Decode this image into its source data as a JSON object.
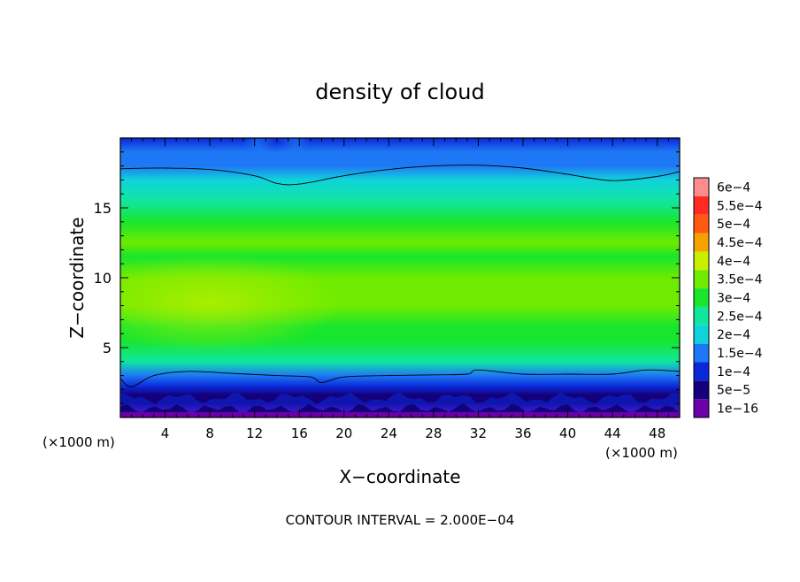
{
  "chart_data": {
    "type": "heatmap",
    "title": "density of cloud",
    "xlabel": "X−coordinate",
    "ylabel": "Z−coordinate",
    "x_unit_left": "(×1000 m)",
    "x_unit_right": "(×1000 m)",
    "footer": "CONTOUR INTERVAL = 2.000E−04",
    "xlim": [
      0,
      50
    ],
    "ylim": [
      0,
      20
    ],
    "xticks": [
      4,
      8,
      12,
      16,
      20,
      24,
      28,
      32,
      36,
      40,
      44,
      48
    ],
    "xtick_labels": [
      "4",
      "8",
      "12",
      "16",
      "20",
      "24",
      "28",
      "32",
      "36",
      "40",
      "44",
      "48"
    ],
    "yticks": [
      5,
      10,
      15
    ],
    "ytick_labels": [
      "5",
      "10",
      "15"
    ],
    "colorbar": {
      "levels": [
        {
          "label": "1e−16",
          "value": 1e-16,
          "color": "#6a00a8"
        },
        {
          "label": "5e−5",
          "value": 5e-05,
          "color": "#14007a"
        },
        {
          "label": "1e−4",
          "value": 0.0001,
          "color": "#0a28d8"
        },
        {
          "label": "1.5e−4",
          "value": 0.00015,
          "color": "#1e78f5"
        },
        {
          "label": "2e−4",
          "value": 0.0002,
          "color": "#10d2dc"
        },
        {
          "label": "2.5e−4",
          "value": 0.00025,
          "color": "#10e6a0"
        },
        {
          "label": "3e−4",
          "value": 0.0003,
          "color": "#18e62d"
        },
        {
          "label": "3.5e−4",
          "value": 0.00035,
          "color": "#6eeb00"
        },
        {
          "label": "4e−4",
          "value": 0.0004,
          "color": "#c8ee00"
        },
        {
          "label": "4.5e−4",
          "value": 0.00045,
          "color": "#f5a200"
        },
        {
          "label": "5e−4",
          "value": 0.0005,
          "color": "#ff5a10"
        },
        {
          "label": "5.5e−4",
          "value": 0.00055,
          "color": "#ff2a24"
        },
        {
          "label": "6e−4",
          "value": 0.0006,
          "color": "#ff8c8c"
        }
      ]
    },
    "contour_level": 0.0002,
    "contour_upper_z": [
      [
        0,
        17.8
      ],
      [
        4,
        17.85
      ],
      [
        8,
        17.75
      ],
      [
        12,
        17.3
      ],
      [
        14,
        16.75
      ],
      [
        16,
        16.7
      ],
      [
        20,
        17.3
      ],
      [
        24,
        17.75
      ],
      [
        28,
        18.0
      ],
      [
        32,
        18.05
      ],
      [
        36,
        17.85
      ],
      [
        40,
        17.4
      ],
      [
        44,
        16.95
      ],
      [
        48,
        17.25
      ],
      [
        50,
        17.6
      ]
    ],
    "contour_lower_z": [
      [
        0,
        2.8
      ],
      [
        1,
        2.2
      ],
      [
        3,
        3.0
      ],
      [
        6,
        3.3
      ],
      [
        10,
        3.15
      ],
      [
        14,
        3.0
      ],
      [
        17,
        2.9
      ],
      [
        18,
        2.5
      ],
      [
        20,
        2.9
      ],
      [
        24,
        3.0
      ],
      [
        28,
        3.05
      ],
      [
        31,
        3.1
      ],
      [
        32,
        3.4
      ],
      [
        36,
        3.1
      ],
      [
        40,
        3.1
      ],
      [
        44,
        3.1
      ],
      [
        47,
        3.4
      ],
      [
        50,
        3.3
      ]
    ],
    "z_profile": [
      {
        "z": 0.0,
        "value": 1e-16
      },
      {
        "z": 0.6,
        "value": 1e-16
      },
      {
        "z": 1.0,
        "value": 5e-05
      },
      {
        "z": 1.6,
        "value": 9e-05
      },
      {
        "z": 2.2,
        "value": 0.00012
      },
      {
        "z": 3.0,
        "value": 0.000195
      },
      {
        "z": 4.0,
        "value": 0.00026
      },
      {
        "z": 5.5,
        "value": 0.0003
      },
      {
        "z": 6.5,
        "value": 0.00033
      },
      {
        "z": 8.0,
        "value": 0.000365
      },
      {
        "z": 10.0,
        "value": 0.00036
      },
      {
        "z": 11.5,
        "value": 0.00033
      },
      {
        "z": 12.5,
        "value": 0.00035
      },
      {
        "z": 14.0,
        "value": 0.00032
      },
      {
        "z": 15.5,
        "value": 0.00029
      },
      {
        "z": 17.0,
        "value": 0.00024
      },
      {
        "z": 18.0,
        "value": 0.00019
      },
      {
        "z": 19.0,
        "value": 0.00015
      },
      {
        "z": 20.0,
        "value": 0.00013
      }
    ],
    "bright_core": {
      "x": 8,
      "z": 8.2,
      "value": 0.0004
    },
    "dark_patch_top": {
      "x": 14,
      "z": 19.8,
      "value": 8e-05
    }
  }
}
